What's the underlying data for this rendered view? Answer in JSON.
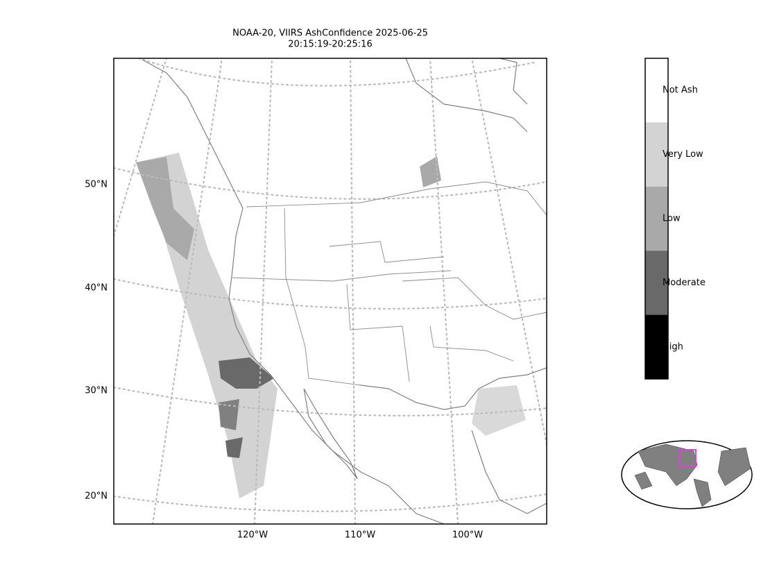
{
  "title": [
    "NOAA-20, VIIRS AshConfidence 2025-06-25",
    "20:15:19-20:25:16"
  ],
  "latitude_labels": [
    "50°N",
    "40°N",
    "30°N",
    "20°N"
  ],
  "longitude_labels": [
    "120°W",
    "110°W",
    "100°W"
  ],
  "colorbar": {
    "categories": [
      "Not Ash",
      "Very Low",
      "Low",
      "Moderate",
      "High"
    ],
    "colors": [
      "#ffffff",
      "#d3d3d3",
      "#a9a9a9",
      "#696969",
      "#000000"
    ]
  }
}
